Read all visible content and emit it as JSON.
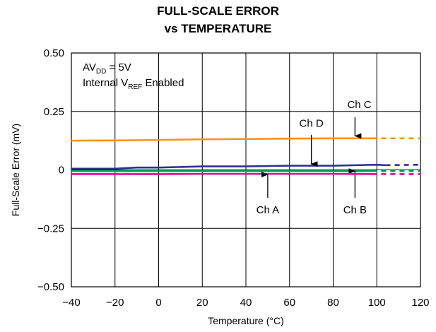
{
  "title_line1": "FULL-SCALE ERROR",
  "title_line2": "vs TEMPERATURE",
  "chart_data": {
    "type": "line",
    "xlabel": "Temperature (°C)",
    "ylabel": "Full-Scale Error (mV)",
    "xlim": [
      -40,
      120
    ],
    "ylim": [
      -0.5,
      0.5
    ],
    "x_ticks": [
      -40,
      -20,
      0,
      20,
      40,
      60,
      80,
      100,
      120
    ],
    "y_ticks": [
      0.5,
      0.25,
      0,
      -0.25,
      -0.5
    ],
    "x_tick_labels": [
      "−40",
      "−20",
      "0",
      "20",
      "40",
      "60",
      "80",
      "100",
      "120"
    ],
    "y_tick_labels": [
      "0.50",
      "0.25",
      "0",
      "−0.25",
      "−0.50"
    ],
    "grid": true,
    "annotation": {
      "line1_main": "AV",
      "line1_sub": "DD",
      "line1_rest": " = 5V",
      "line2_main": "Internal V",
      "line2_sub": "REF",
      "line2_rest": " Enabled"
    },
    "series": [
      {
        "name": "Ch C",
        "color": "#F7941D",
        "x": [
          -40,
          -20,
          0,
          20,
          40,
          60,
          80,
          100
        ],
        "y": [
          0.125,
          0.126,
          0.128,
          0.131,
          0.132,
          0.134,
          0.135,
          0.135
        ],
        "extrapolated": {
          "x": [
            102,
            120
          ],
          "y": [
            0.135,
            0.135
          ]
        },
        "label_at": {
          "x": 92,
          "y": 0.28
        },
        "arrow": {
          "from_y": 0.225,
          "to_y": 0.145,
          "x": 90
        }
      },
      {
        "name": "Ch D",
        "color": "#2E3192",
        "x": [
          -40,
          -20,
          -10,
          0,
          20,
          40,
          60,
          80,
          100,
          104
        ],
        "y": [
          0.005,
          0.005,
          0.01,
          0.01,
          0.015,
          0.015,
          0.018,
          0.018,
          0.022,
          0.02
        ],
        "extrapolated": {
          "x": [
            104,
            120
          ],
          "y": [
            0.02,
            0.022
          ]
        },
        "label_at": {
          "x": 70,
          "y": 0.2
        },
        "arrow": {
          "from_y": 0.15,
          "to_y": 0.025,
          "x": 70
        }
      },
      {
        "name": "Ch B",
        "color": "#00A651",
        "x": [
          -40,
          -20,
          0,
          20,
          40,
          60,
          80,
          100
        ],
        "y": [
          -0.005,
          -0.005,
          -0.005,
          -0.005,
          -0.005,
          -0.005,
          -0.005,
          -0.005
        ],
        "extrapolated": {
          "x": [
            102,
            120
          ],
          "y": [
            -0.005,
            -0.005
          ]
        },
        "label_at": {
          "x": 90,
          "y": -0.17
        },
        "arrow": {
          "from_y": -0.12,
          "to_y": -0.005,
          "x": 90
        }
      },
      {
        "name": "Ch A",
        "color": "#EC008C",
        "x": [
          -40,
          -20,
          0,
          20,
          40,
          60,
          80,
          100
        ],
        "y": [
          -0.018,
          -0.018,
          -0.018,
          -0.017,
          -0.017,
          -0.017,
          -0.017,
          -0.018
        ],
        "extrapolated": {
          "x": [
            102,
            120
          ],
          "y": [
            -0.018,
            -0.018
          ]
        },
        "label_at": {
          "x": 50,
          "y": -0.17
        },
        "arrow": {
          "from_y": -0.12,
          "to_y": -0.02,
          "x": 50
        }
      }
    ]
  }
}
